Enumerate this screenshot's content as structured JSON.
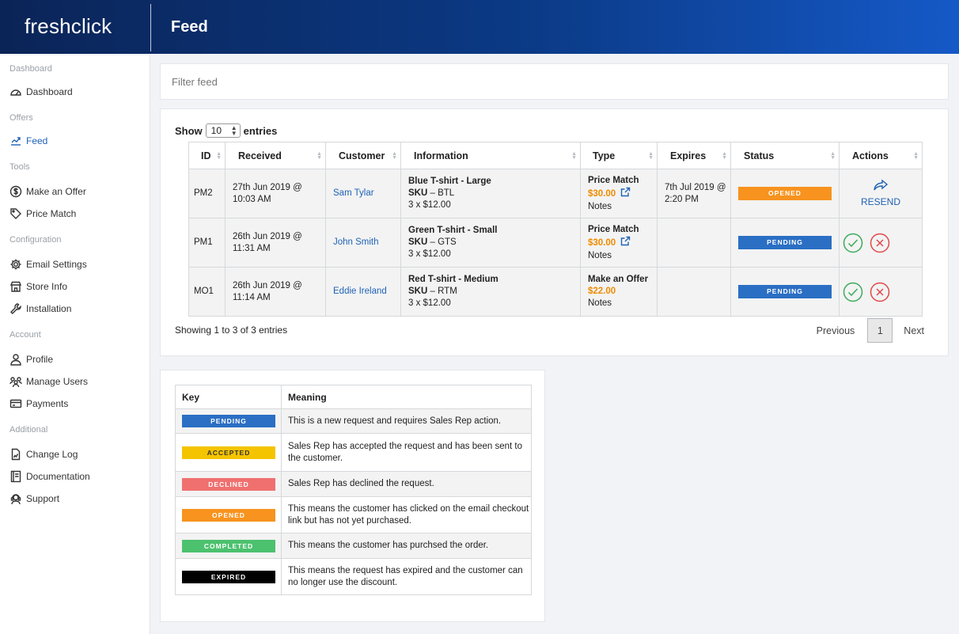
{
  "header": {
    "logo": "freshclick",
    "title": "Feed"
  },
  "sidebar": {
    "sections": [
      {
        "label": "Dashboard",
        "items": [
          {
            "label": "Dashboard",
            "icon": "gauge-icon"
          }
        ]
      },
      {
        "label": "Offers",
        "items": [
          {
            "label": "Feed",
            "icon": "feed-icon",
            "active": true
          }
        ]
      },
      {
        "label": "Tools",
        "items": [
          {
            "label": "Make an Offer",
            "icon": "dollar-icon"
          },
          {
            "label": "Price Match",
            "icon": "tag-icon"
          }
        ]
      },
      {
        "label": "Configuration",
        "items": [
          {
            "label": "Email Settings",
            "icon": "gear-icon"
          },
          {
            "label": "Store Info",
            "icon": "store-icon"
          },
          {
            "label": "Installation",
            "icon": "wrench-icon"
          }
        ]
      },
      {
        "label": "Account",
        "items": [
          {
            "label": "Profile",
            "icon": "user-icon"
          },
          {
            "label": "Manage Users",
            "icon": "users-icon"
          },
          {
            "label": "Payments",
            "icon": "card-icon"
          }
        ]
      },
      {
        "label": "Additional",
        "items": [
          {
            "label": "Change Log",
            "icon": "log-icon"
          },
          {
            "label": "Documentation",
            "icon": "book-icon"
          },
          {
            "label": "Support",
            "icon": "support-icon"
          }
        ]
      }
    ]
  },
  "filter": {
    "placeholder": "Filter feed"
  },
  "table": {
    "show_label": "Show",
    "entries_label": "entries",
    "page_size": "10",
    "columns": [
      "ID",
      "Received",
      "Customer",
      "Information",
      "Type",
      "Expires",
      "Status",
      "Actions"
    ],
    "rows": [
      {
        "id": "PM2",
        "received": "27th Jun 2019 @ 10:03 AM",
        "customer": "Sam Tylar",
        "info_title": "Blue T-shirt - Large",
        "sku_label": "SKU",
        "sku": " – BTL",
        "qty": "3 x $12.00",
        "type": "Price Match",
        "price": "$30.00",
        "notes": "Notes",
        "expires": "7th Jul 2019 @ 2:20 PM",
        "status": "OPENED",
        "status_color": "#f7931e",
        "action": "RESEND"
      },
      {
        "id": "PM1",
        "received": "26th Jun 2019 @ 11:31 AM",
        "customer": "John Smith",
        "info_title": "Green T-shirt - Small",
        "sku_label": "SKU",
        "sku": " – GTS",
        "qty": "3 x $12.00",
        "type": "Price Match",
        "price": "$30.00",
        "notes": "Notes",
        "expires": "",
        "status": "PENDING",
        "status_color": "#2a6fc4",
        "action": "approve-reject"
      },
      {
        "id": "MO1",
        "received": "26th Jun 2019 @ 11:14 AM",
        "customer": "Eddie Ireland",
        "info_title": "Red T-shirt - Medium",
        "sku_label": "SKU",
        "sku": " – RTM",
        "qty": "3 x $12.00",
        "type": "Make an Offer",
        "price": "$22.00",
        "notes": "Notes",
        "expires": "",
        "status": "PENDING",
        "status_color": "#2a6fc4",
        "action": "approve-reject"
      }
    ],
    "showing_text": "Showing 1 to 3 of 3 entries",
    "pagination": {
      "previous": "Previous",
      "page": "1",
      "next": "Next"
    }
  },
  "key": {
    "columns": [
      "Key",
      "Meaning"
    ],
    "rows": [
      {
        "badge": "PENDING",
        "color": "#2a6fc4",
        "text_color": "#ffffff",
        "meaning": "This is a new request and requires Sales Rep action."
      },
      {
        "badge": "ACCEPTED",
        "color": "#f5c400",
        "text_color": "#333333",
        "meaning": "Sales Rep has accepted the request and has been sent to the customer."
      },
      {
        "badge": "DECLINED",
        "color": "#f07070",
        "text_color": "#ffffff",
        "meaning": "Sales Rep has declined the request."
      },
      {
        "badge": "OPENED",
        "color": "#f7931e",
        "text_color": "#ffffff",
        "meaning": "This means the customer has clicked on the email checkout link but has not yet purchased."
      },
      {
        "badge": "COMPLETED",
        "color": "#4cc16e",
        "text_color": "#ffffff",
        "meaning": "This means the customer has purchsed the order."
      },
      {
        "badge": "EXPIRED",
        "color": "#000000",
        "text_color": "#ffffff",
        "meaning": "This means the request has expired and the customer can no longer use the discount."
      }
    ]
  }
}
